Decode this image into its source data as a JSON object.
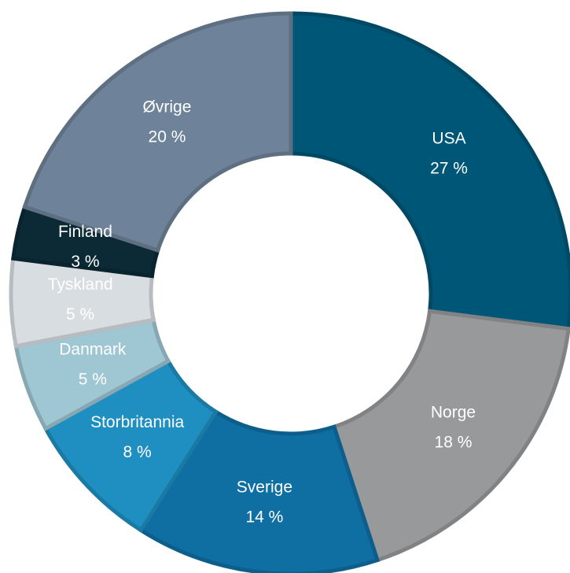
{
  "chart_data": {
    "type": "donut",
    "categories": [
      "USA",
      "Norge",
      "Sverige",
      "Storbritannia",
      "Danmark",
      "Tyskland",
      "Finland",
      "Øvrige"
    ],
    "values": [
      27,
      18,
      14,
      8,
      5,
      5,
      3,
      20
    ],
    "value_labels": [
      "27 %",
      "18 %",
      "14 %",
      "8 %",
      "5 %",
      "5 %",
      "3 %",
      "20 %"
    ],
    "colors": [
      "#005677",
      "#97999b",
      "#0f6fa3",
      "#1e8fc0",
      "#9fc6d3",
      "#d8dde2",
      "#0b2a36",
      "#6e8299"
    ]
  }
}
